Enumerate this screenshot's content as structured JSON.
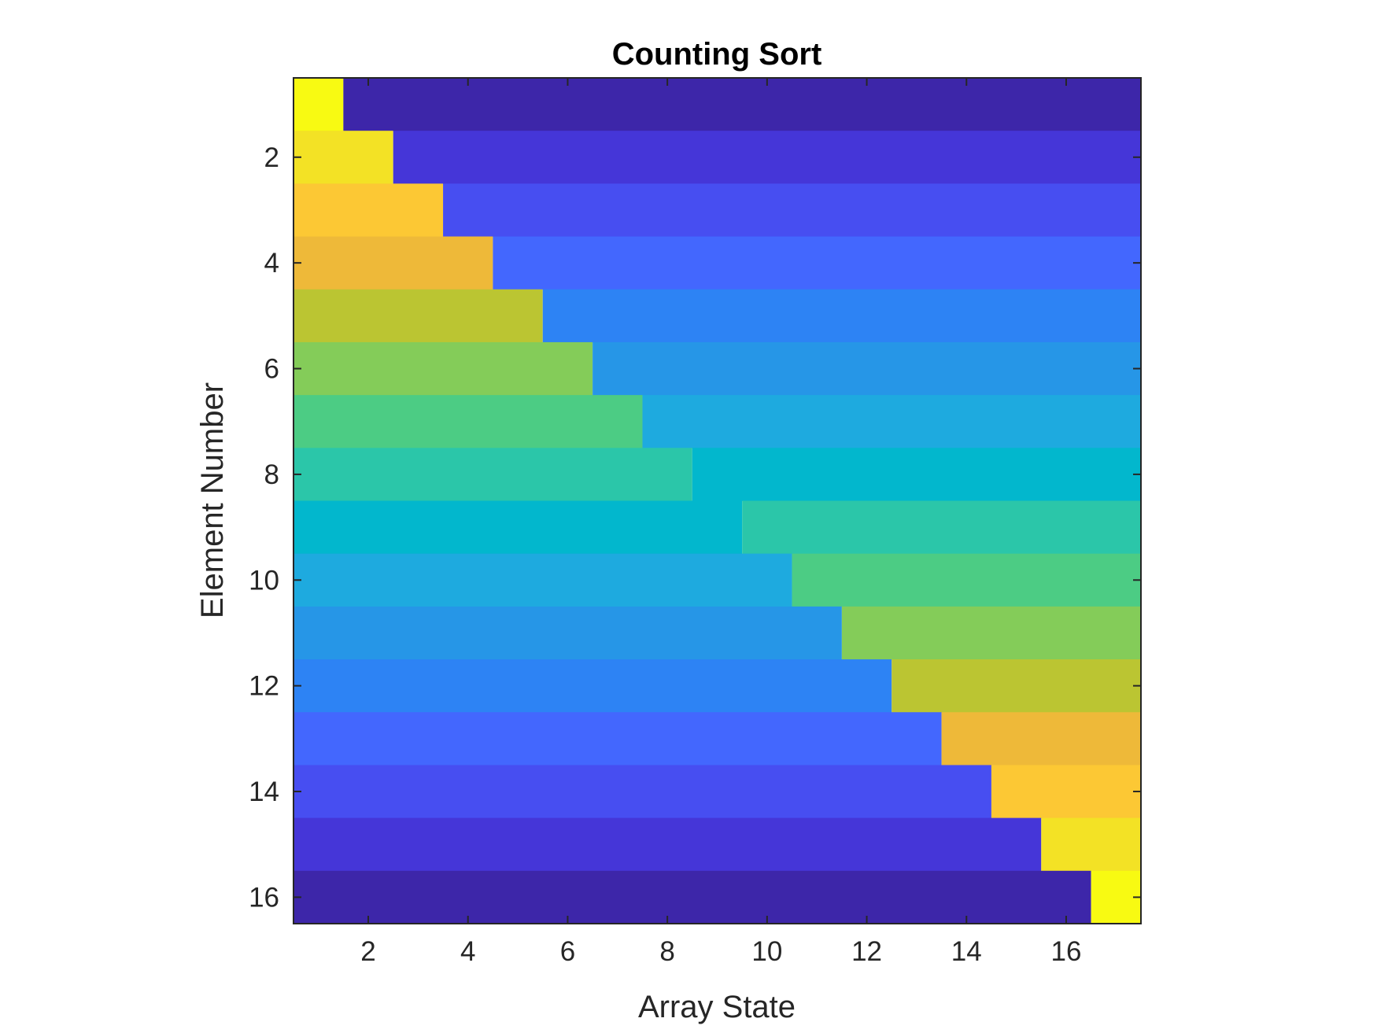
{
  "chart_data": {
    "type": "heatmap",
    "title": "Counting Sort",
    "xlabel": "Array State",
    "ylabel": "Element Number",
    "x_range": [
      0.5,
      17.5
    ],
    "y_range": [
      0.5,
      16.5
    ],
    "y_direction": "reverse",
    "x_ticks": [
      2,
      4,
      6,
      8,
      10,
      12,
      14,
      16
    ],
    "y_ticks": [
      2,
      4,
      6,
      8,
      10,
      12,
      14,
      16
    ],
    "colormap": "parula",
    "color_limits": [
      1,
      16
    ],
    "n_states": 17,
    "n_elements": 16,
    "row_segments": [
      {
        "element": 1,
        "split_state": 1,
        "left_value": 16,
        "right_value": 1
      },
      {
        "element": 2,
        "split_state": 2,
        "left_value": 15,
        "right_value": 2
      },
      {
        "element": 3,
        "split_state": 3,
        "left_value": 14,
        "right_value": 3
      },
      {
        "element": 4,
        "split_state": 4,
        "left_value": 13,
        "right_value": 4
      },
      {
        "element": 5,
        "split_state": 5,
        "left_value": 12,
        "right_value": 5
      },
      {
        "element": 6,
        "split_state": 6,
        "left_value": 11,
        "right_value": 6
      },
      {
        "element": 7,
        "split_state": 7,
        "left_value": 10,
        "right_value": 7
      },
      {
        "element": 8,
        "split_state": 8,
        "left_value": 9,
        "right_value": 8
      },
      {
        "element": 9,
        "split_state": 9,
        "left_value": 8,
        "right_value": 9
      },
      {
        "element": 10,
        "split_state": 10,
        "left_value": 7,
        "right_value": 10
      },
      {
        "element": 11,
        "split_state": 11,
        "left_value": 6,
        "right_value": 11
      },
      {
        "element": 12,
        "split_state": 12,
        "left_value": 5,
        "right_value": 12
      },
      {
        "element": 13,
        "split_state": 13,
        "left_value": 4,
        "right_value": 13
      },
      {
        "element": 14,
        "split_state": 14,
        "left_value": 3,
        "right_value": 14
      },
      {
        "element": 15,
        "split_state": 15,
        "left_value": 2,
        "right_value": 15
      },
      {
        "element": 16,
        "split_state": 16,
        "left_value": 1,
        "right_value": 16
      }
    ],
    "colors": {
      "1": "#3d26a9",
      "2": "#4536d8",
      "3": "#474ef1",
      "4": "#4367fe",
      "5": "#2d83f4",
      "6": "#2696e7",
      "7": "#1eaadf",
      "8": "#02b7cd",
      "9": "#2bc6a9",
      "10": "#4ccc84",
      "11": "#84cc59",
      "12": "#bbc532",
      "13": "#eeb939",
      "14": "#fcc834",
      "15": "#f3e225",
      "16": "#f8fa12"
    }
  }
}
